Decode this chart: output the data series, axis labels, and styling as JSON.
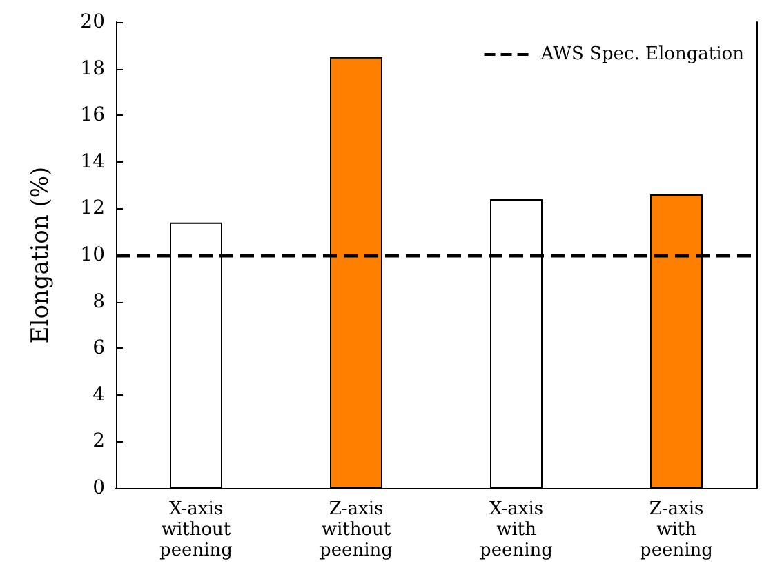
{
  "chart_data": {
    "type": "bar",
    "ylabel": "Elongation (%)",
    "categories": [
      "X-axis\nwithout\npeening",
      "Z-axis\nwithout\npeening",
      "X-axis\nwith\npeening",
      "Z-axis\nwith\npeening"
    ],
    "values": [
      11.4,
      18.5,
      12.4,
      12.6
    ],
    "colors": [
      "#ffffff",
      "#ff7f00",
      "#ffffff",
      "#ff7f00"
    ],
    "ylim": [
      0,
      20
    ],
    "yticks": [
      0,
      2,
      4,
      6,
      8,
      10,
      12,
      14,
      16,
      18,
      20
    ],
    "ref_lines": [
      {
        "axis": "y",
        "value": 10,
        "label": "AWS Spec. Elongation",
        "color": "#000000",
        "line_style": "dashed"
      }
    ],
    "legend": "top right",
    "grid": false
  }
}
